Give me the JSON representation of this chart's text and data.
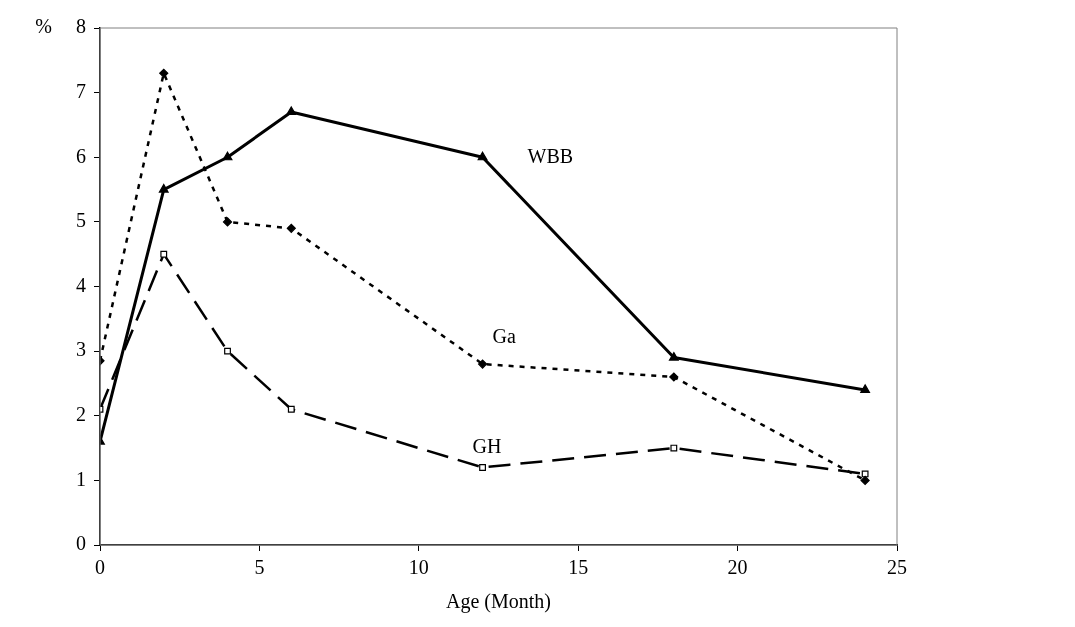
{
  "chart_data": {
    "type": "line",
    "xlabel": "Age (Month)",
    "ylabel": "%",
    "x": [
      0,
      2,
      4,
      6,
      12,
      18,
      24
    ],
    "xlim": [
      0,
      25
    ],
    "xticks": [
      0,
      5,
      10,
      15,
      20,
      25
    ],
    "ylim": [
      0,
      8
    ],
    "yticks": [
      0,
      1,
      2,
      3,
      4,
      5,
      6,
      7,
      8
    ],
    "grid": false,
    "legend": false,
    "series": [
      {
        "name": "WBB",
        "color": "#000000",
        "marker": "triangle",
        "line_style": "solid",
        "values": [
          1.6,
          5.5,
          6.0,
          6.7,
          6.0,
          2.9,
          2.4
        ]
      },
      {
        "name": "Ga",
        "color": "#000000",
        "marker": "diamond",
        "line_style": "dotted",
        "values": [
          2.85,
          7.3,
          5.0,
          4.9,
          2.8,
          2.6,
          1.0
        ]
      },
      {
        "name": "GH",
        "color": "#000000",
        "marker": "square",
        "line_style": "dashed",
        "values": [
          2.1,
          4.5,
          3.0,
          2.1,
          1.2,
          1.5,
          1.1
        ]
      }
    ]
  }
}
